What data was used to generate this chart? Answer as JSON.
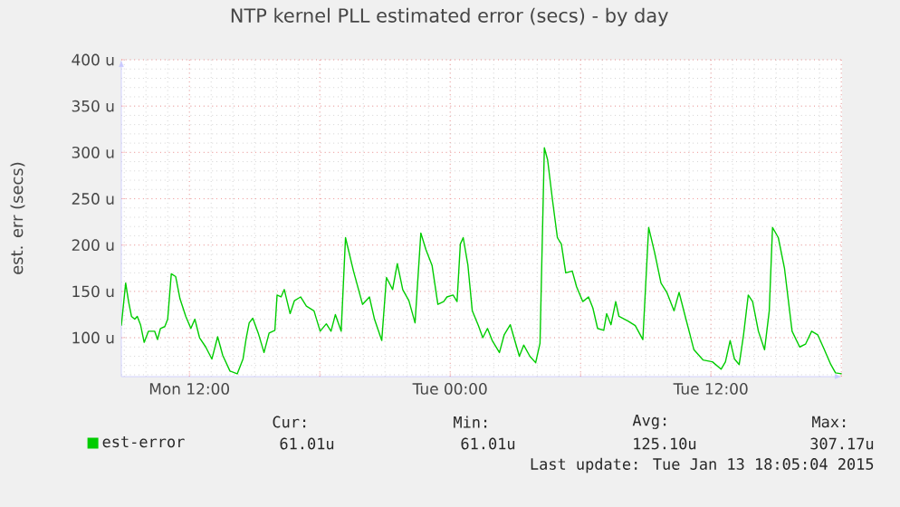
{
  "chart_data": {
    "type": "line",
    "title": "NTP kernel PLL estimated error (secs) - by day",
    "ylabel": "est. err (secs)",
    "x": [
      "2015-01-12T08:52",
      "2015-01-12T09:04",
      "2015-01-12T09:12",
      "2015-01-12T09:20",
      "2015-01-12T09:29",
      "2015-01-12T09:36",
      "2015-01-12T09:45",
      "2015-01-12T09:55",
      "2015-01-12T10:07",
      "2015-01-12T10:24",
      "2015-01-12T10:32",
      "2015-01-12T10:40",
      "2015-01-12T10:52",
      "2015-01-12T11:00",
      "2015-01-12T11:10",
      "2015-01-12T11:22",
      "2015-01-12T11:34",
      "2015-01-12T11:50",
      "2015-01-12T12:04",
      "2015-01-12T12:15",
      "2015-01-12T12:28",
      "2015-01-12T12:45",
      "2015-01-12T13:02",
      "2015-01-12T13:18",
      "2015-01-12T13:32",
      "2015-01-12T13:52",
      "2015-01-12T14:12",
      "2015-01-12T14:28",
      "2015-01-12T14:37",
      "2015-01-12T14:45",
      "2015-01-12T14:55",
      "2015-01-12T15:10",
      "2015-01-12T15:26",
      "2015-01-12T15:40",
      "2015-01-12T15:56",
      "2015-01-12T16:02",
      "2015-01-12T16:13",
      "2015-01-12T16:22",
      "2015-01-12T16:38",
      "2015-01-12T16:50",
      "2015-01-12T17:07",
      "2015-01-12T17:23",
      "2015-01-12T17:44",
      "2015-01-12T18:01",
      "2015-01-12T18:18",
      "2015-01-12T18:31",
      "2015-01-12T18:43",
      "2015-01-12T18:59",
      "2015-01-12T19:11",
      "2015-01-12T19:33",
      "2015-01-12T19:58",
      "2015-01-12T20:17",
      "2015-01-12T20:31",
      "2015-01-12T20:51",
      "2015-01-12T21:04",
      "2015-01-12T21:21",
      "2015-01-12T21:34",
      "2015-01-12T21:49",
      "2015-01-12T22:06",
      "2015-01-12T22:23",
      "2015-01-12T22:39",
      "2015-01-12T22:53",
      "2015-01-12T23:10",
      "2015-01-12T23:26",
      "2015-01-12T23:42",
      "2015-01-12T23:51",
      "2015-01-13T00:08",
      "2015-01-13T00:19",
      "2015-01-13T00:28",
      "2015-01-13T00:36",
      "2015-01-13T00:49",
      "2015-01-13T01:01",
      "2015-01-13T01:18",
      "2015-01-13T01:30",
      "2015-01-13T01:43",
      "2015-01-13T01:56",
      "2015-01-13T02:16",
      "2015-01-13T02:29",
      "2015-01-13T02:46",
      "2015-01-13T02:54",
      "2015-01-13T03:11",
      "2015-01-13T03:23",
      "2015-01-13T03:40",
      "2015-01-13T03:56",
      "2015-01-13T04:08",
      "2015-01-13T04:20",
      "2015-01-13T04:29",
      "2015-01-13T04:42",
      "2015-01-13T04:56",
      "2015-01-13T05:07",
      "2015-01-13T05:19",
      "2015-01-13T05:37",
      "2015-01-13T05:49",
      "2015-01-13T06:06",
      "2015-01-13T06:22",
      "2015-01-13T06:34",
      "2015-01-13T06:47",
      "2015-01-13T07:04",
      "2015-01-13T07:12",
      "2015-01-13T07:24",
      "2015-01-13T07:37",
      "2015-01-13T07:46",
      "2015-01-13T08:11",
      "2015-01-13T08:31",
      "2015-01-13T08:52",
      "2015-01-13T09:08",
      "2015-01-13T09:25",
      "2015-01-13T09:42",
      "2015-01-13T09:58",
      "2015-01-13T10:18",
      "2015-01-13T10:32",
      "2015-01-13T10:49",
      "2015-01-13T11:13",
      "2015-01-13T11:38",
      "2015-01-13T12:04",
      "2015-01-13T12:28",
      "2015-01-13T12:40",
      "2015-01-13T12:53",
      "2015-01-13T13:05",
      "2015-01-13T13:18",
      "2015-01-13T13:30",
      "2015-01-13T13:43",
      "2015-01-13T13:55",
      "2015-01-13T14:11",
      "2015-01-13T14:28",
      "2015-01-13T14:41",
      "2015-01-13T14:50",
      "2015-01-13T15:06",
      "2015-01-13T15:23",
      "2015-01-13T15:44",
      "2015-01-13T16:05",
      "2015-01-13T16:21",
      "2015-01-13T16:38",
      "2015-01-13T16:55",
      "2015-01-13T17:11",
      "2015-01-13T17:31",
      "2015-01-13T17:44",
      "2015-01-13T18:01"
    ],
    "series": [
      {
        "name": "est-error",
        "color": "#00cc00",
        "values": [
          113,
          159,
          139,
          123,
          120,
          123,
          114,
          95,
          107,
          107,
          98,
          110,
          112,
          120,
          169,
          166,
          142,
          123,
          110,
          120,
          100,
          90,
          77,
          101,
          81,
          64,
          61,
          77,
          100,
          116,
          121,
          105,
          84,
          105,
          108,
          146,
          144,
          152,
          126,
          140,
          144,
          134,
          129,
          107,
          115,
          107,
          125,
          107,
          208,
          172,
          136,
          144,
          120,
          97,
          165,
          152,
          180,
          152,
          140,
          116,
          213,
          195,
          178,
          136,
          139,
          144,
          146,
          139,
          201,
          208,
          178,
          129,
          113,
          100,
          110,
          97,
          84,
          103,
          114,
          103,
          80,
          92,
          80,
          73,
          94,
          305,
          292,
          250,
          208,
          201,
          170,
          172,
          155,
          139,
          144,
          132,
          110,
          108,
          126,
          114,
          139,
          123,
          118,
          113,
          98,
          219,
          191,
          159,
          149,
          129,
          149,
          123,
          87,
          76,
          74,
          66,
          74,
          97,
          77,
          71,
          103,
          146,
          139,
          107,
          87,
          129,
          219,
          208,
          175,
          107,
          90,
          93,
          107,
          103,
          89,
          71,
          62,
          61
        ]
      }
    ],
    "xlim": [
      "2015-01-12T08:52",
      "2015-01-13T18:02"
    ],
    "ylim": [
      58,
      400
    ],
    "xticks": [
      {
        "value": "2015-01-12T12:00",
        "label": "Mon 12:00"
      },
      {
        "value": "2015-01-12T18:00",
        "label": null
      },
      {
        "value": "2015-01-13T00:00",
        "label": "Tue 00:00"
      },
      {
        "value": "2015-01-13T06:00",
        "label": null
      },
      {
        "value": "2015-01-13T12:00",
        "label": "Tue 12:00"
      },
      {
        "value": "2015-01-13T18:00",
        "label": null
      }
    ],
    "yticks": [
      {
        "value": 100,
        "label": "100 u"
      },
      {
        "value": 150,
        "label": "150 u"
      },
      {
        "value": 200,
        "label": "200 u"
      },
      {
        "value": 250,
        "label": "250 u"
      },
      {
        "value": 300,
        "label": "300 u"
      },
      {
        "value": 350,
        "label": "350 u"
      },
      {
        "value": 400,
        "label": "400 u"
      }
    ],
    "grid": true,
    "legend": "bottom left",
    "annotations": [
      "Cur:",
      "Min:",
      "Avg:",
      "Max:",
      "61.01u",
      "61.01u",
      "125.10u",
      "307.17u",
      "Last update:  Tue Jan 13 18:05:04 2015"
    ]
  }
}
